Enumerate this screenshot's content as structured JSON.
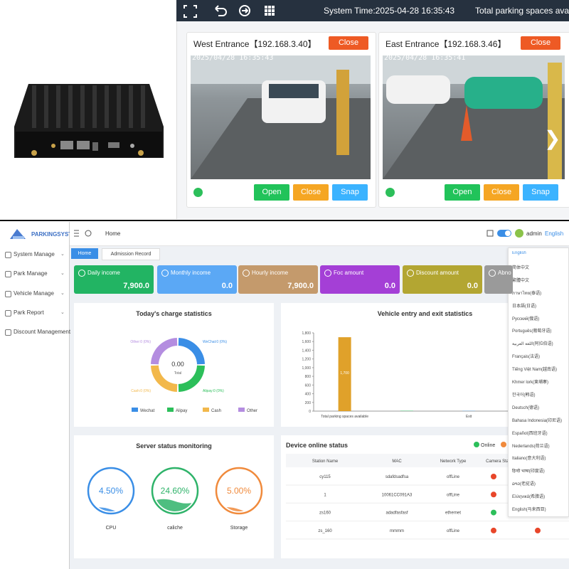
{
  "toolbar": {
    "system_time": "System Time:2025-04-28 16:35:43",
    "spaces": "Total parking spaces availab"
  },
  "cameras": [
    {
      "title": "West Entrance【192.168.3.40】",
      "close": "Close",
      "timestamp": "2025/04/28 16:35:43",
      "buttons": [
        "Open",
        "Close",
        "Snap"
      ]
    },
    {
      "title": "East Entrance【192.168.3.46】",
      "close": "Close",
      "timestamp": "2025/04/28 16:35:41",
      "buttons": [
        "Open",
        "Close",
        "Snap"
      ]
    }
  ],
  "sidebar": {
    "logo": "PARKINGSYSTEM",
    "menu": [
      "System Manage",
      "Park Manage",
      "Vehicle Manage",
      "Park Report",
      "Discount Management"
    ]
  },
  "header": {
    "breadcrumb": "Home",
    "user": "admin",
    "language": "English"
  },
  "tabs": [
    "Home",
    "Admission Record"
  ],
  "income_cards": [
    {
      "label": "Daily income",
      "value": "7,900.0"
    },
    {
      "label": "Monthly income",
      "value": "0.0"
    },
    {
      "label": "Hourly income",
      "value": "7,900.0"
    },
    {
      "label": "Foc amount",
      "value": "0.0"
    },
    {
      "label": "Discount amount",
      "value": "0.0"
    },
    {
      "label": "Abno"
    }
  ],
  "charge_stats": {
    "title": "Today's charge statistics",
    "total_value": "0.00",
    "total_label": "Total",
    "slice_labels": [
      "WeChat:0 (0%)",
      "Alipay:0 (0%)",
      "Cash:0 (0%)",
      "Other:0 (0%)"
    ],
    "legend": [
      "Wechat",
      "Alipay",
      "Cash",
      "Other"
    ]
  },
  "vehicle_chart": {
    "type": "bar",
    "title": "Vehicle entry and exit statistics",
    "categories": [
      "Total parking spaces available",
      null,
      "Exit",
      null
    ],
    "values": [
      1700,
      8,
      6,
      0
    ],
    "value_labels": [
      "1,700",
      null,
      null,
      null
    ],
    "colors": [
      "#e0a12a",
      "#3dbb6b",
      "#5b9bd5",
      "#9b59b6"
    ],
    "ylim": [
      0,
      1800
    ],
    "yticks": [
      0,
      200,
      400,
      600,
      800,
      {
        "value": 1000,
        "label": "1,000"
      },
      {
        "value": 1200,
        "label": "1,200"
      },
      {
        "value": 1400,
        "label": "1,400"
      },
      {
        "value": 1600,
        "label": "1,600"
      },
      {
        "value": 1800,
        "label": "1,800"
      }
    ]
  },
  "server": {
    "title": "Server status monitoring",
    "names": [
      "CPU",
      "caliche",
      "Storage"
    ],
    "values": [
      4.5,
      24.6,
      5
    ],
    "value_labels": [
      "4.50%",
      "24.60%",
      "5.00%"
    ],
    "ylim": [
      0,
      100
    ],
    "colors": [
      "#3a8ee6",
      "#2fb36a",
      "#f08a3c"
    ]
  },
  "device": {
    "title": "Device online status",
    "legend": [
      "Online"
    ],
    "columns": [
      "Station Name",
      "MAC",
      "Network Type",
      "Camera Stat"
    ],
    "rows": [
      [
        "cy115",
        "sdafdsadfsa",
        "offLine"
      ],
      [
        "1",
        "10061CC091A3",
        "offLine"
      ],
      [
        "zs160",
        "adadfasfasf",
        "ethernet"
      ],
      [
        "zs_160",
        "mmmm",
        "offLine"
      ]
    ]
  },
  "languages": [
    "English",
    "简体中文",
    "繁體中文",
    "ภาษาไทย(泰语)",
    "日本語(日语)",
    "Русский(俄语)",
    "Português(葡萄牙语)",
    "اللغة العربية(阿拉伯语)",
    "Français(法语)",
    "Tiếng Việt Nam(越南语)",
    "Khmer lork(柬埔寨)",
    "한국어(韩语)",
    "Deutsch(德语)",
    "Bahasa Indonesia(印尼语)",
    "Español(西班牙语)",
    "Nederlands(荷兰语)",
    "Italiano(意大利语)",
    "हिन्दी भाषा(印度语)",
    "ລາວ(老挝语)",
    "Ελληνικά(希腊语)",
    "English(马来西亚)"
  ]
}
